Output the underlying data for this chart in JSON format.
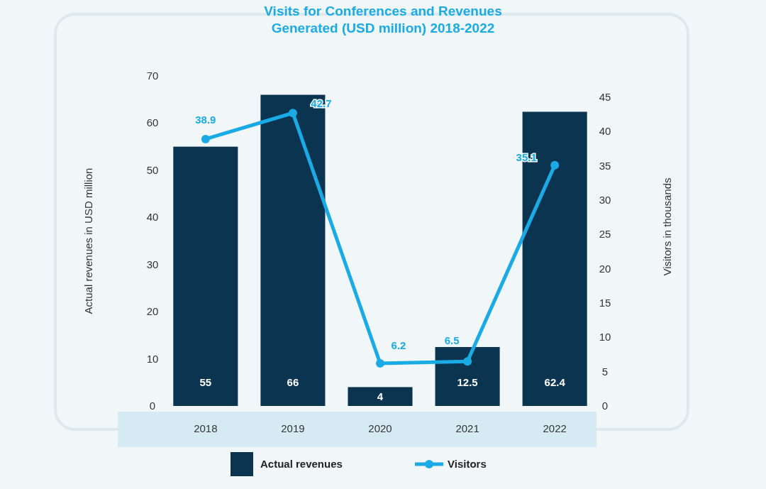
{
  "chart_data": {
    "type": "bar",
    "title": "Visits for Conferences and Revenues\nGenerated (USD million) 2018-2022",
    "ylabel": "Actual revenues in USD million",
    "y2label": "Visitors in thousands",
    "categories": [
      "2018",
      "2019",
      "2020",
      "2021",
      "2022"
    ],
    "series": [
      {
        "name": "Actual revenues",
        "color": "#0b3450",
        "values": [
          55,
          66,
          4,
          12.5,
          62.4
        ]
      },
      {
        "name": "Visitors",
        "type": "line",
        "axis": "y2",
        "color": "#1aabe6",
        "values": [
          38.9,
          42.7,
          6.2,
          6.5,
          35.1
        ],
        "marker": "circle"
      }
    ],
    "ylim": [
      0,
      70
    ],
    "yticks": [
      0,
      10,
      20,
      30,
      40,
      50,
      60,
      70
    ],
    "y2lim": [
      0,
      45
    ],
    "y2ticks": [
      0,
      5,
      10,
      15,
      20,
      25,
      30,
      35,
      40,
      45
    ],
    "data_labels": true,
    "grid": false,
    "legend": "bottom"
  }
}
